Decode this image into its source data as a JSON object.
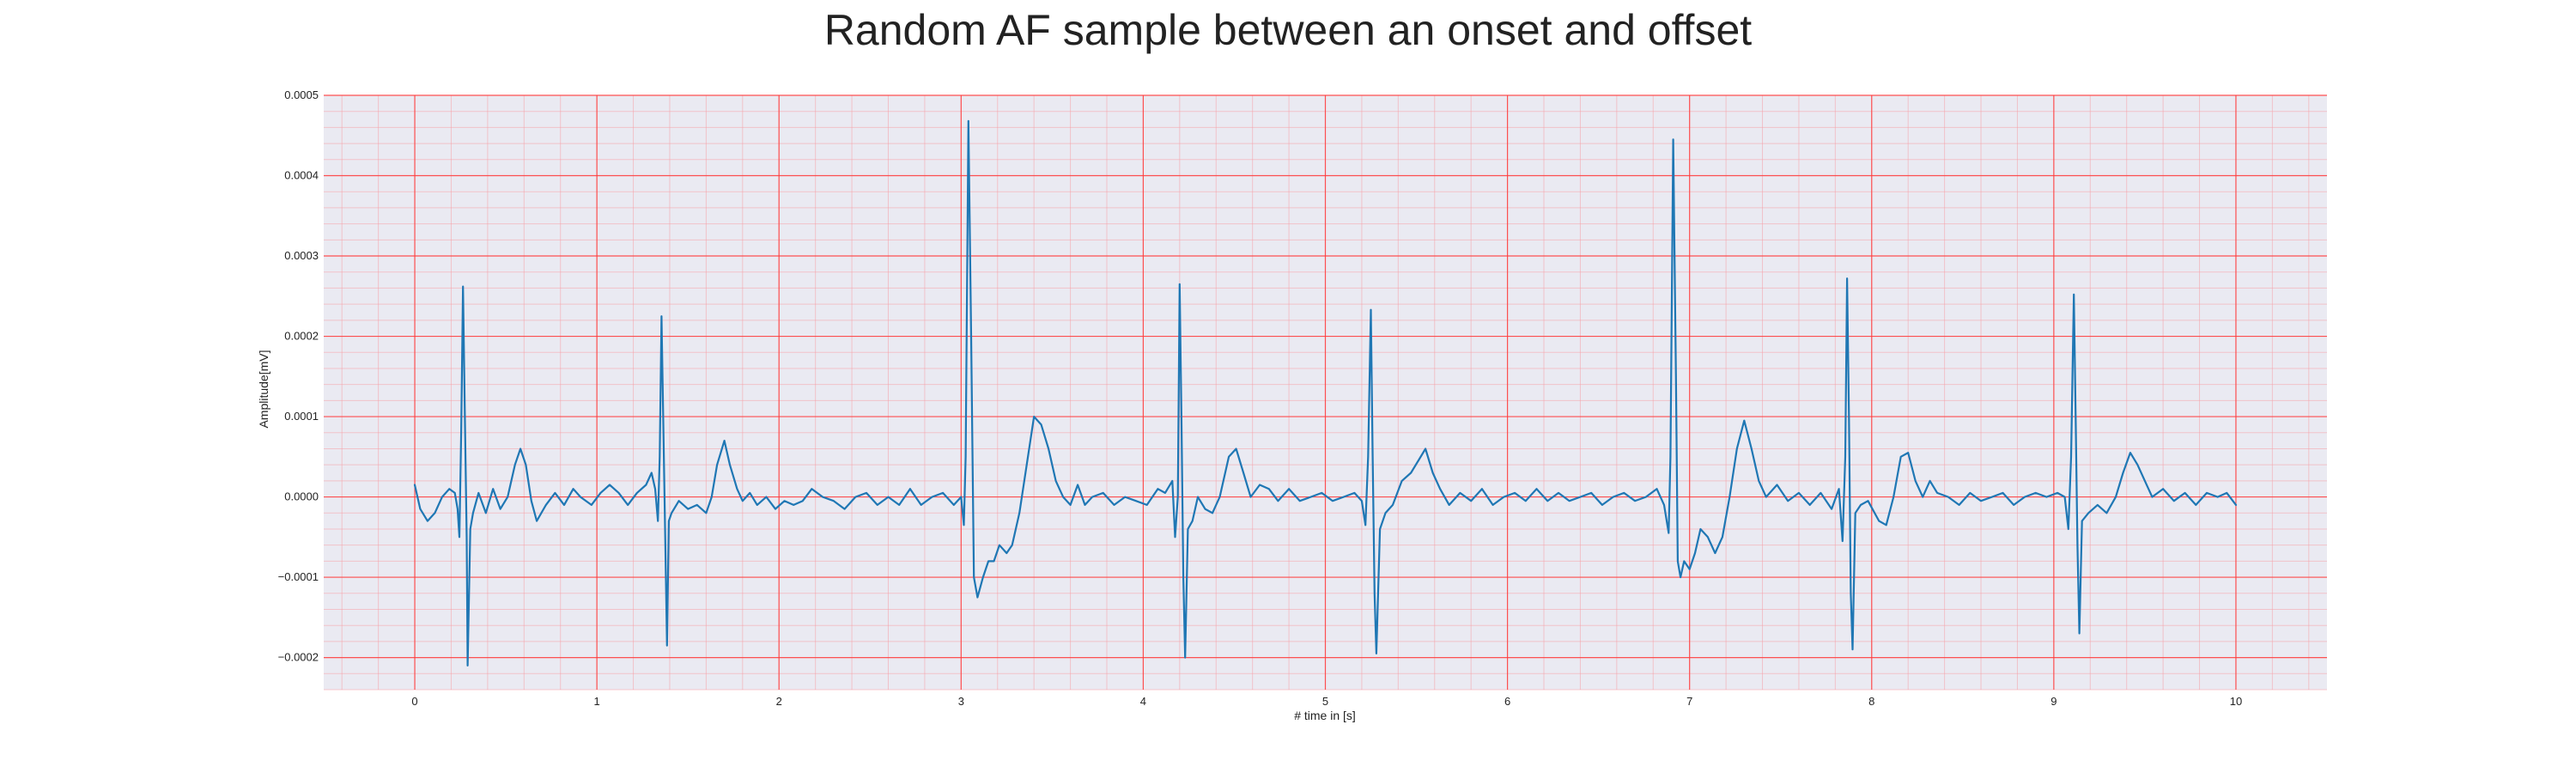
{
  "chart_data": {
    "type": "line",
    "title": "Random AF sample between an onset and offset",
    "xlabel": "# time in [s]",
    "ylabel": "Amplitude[mV]",
    "xlim": [
      -0.5,
      10.5
    ],
    "ylim": [
      -0.00024,
      0.0005
    ],
    "x_ticks": [
      0,
      1,
      2,
      3,
      4,
      5,
      6,
      7,
      8,
      9,
      10
    ],
    "y_ticks": [
      -0.0002,
      -0.0001,
      0.0,
      0.0001,
      0.0002,
      0.0003,
      0.0004,
      0.0005
    ],
    "x_tick_labels": [
      "0",
      "1",
      "2",
      "3",
      "4",
      "5",
      "6",
      "7",
      "8",
      "9",
      "10"
    ],
    "y_tick_labels": [
      "−0.0002",
      "−0.0001",
      "0.0000",
      "0.0001",
      "0.0002",
      "0.0003",
      "0.0004",
      "0.0005"
    ],
    "grid": true,
    "minor_grid": true,
    "colors": {
      "background": "#eaeaf2",
      "major_grid": "#ff3b3b",
      "minor_grid": "#f5a0a8",
      "line": "#1f77b4"
    },
    "series": [
      {
        "values": [
          [
            0.0,
            1.5e-05
          ],
          [
            0.03,
            -1.5e-05
          ],
          [
            0.07,
            -3e-05
          ],
          [
            0.11,
            -2e-05
          ],
          [
            0.15,
            0.0
          ],
          [
            0.19,
            1e-05
          ],
          [
            0.22,
            5e-06
          ],
          [
            0.235,
            -1.5e-05
          ],
          [
            0.245,
            -5e-05
          ],
          [
            0.255,
            8e-05
          ],
          [
            0.265,
            0.000262
          ],
          [
            0.275,
            0.0001
          ],
          [
            0.285,
            -5e-05
          ],
          [
            0.29,
            -0.00021
          ],
          [
            0.305,
            -4e-05
          ],
          [
            0.32,
            -2e-05
          ],
          [
            0.35,
            5e-06
          ],
          [
            0.39,
            -2e-05
          ],
          [
            0.43,
            1e-05
          ],
          [
            0.47,
            -1.5e-05
          ],
          [
            0.51,
            0.0
          ],
          [
            0.55,
            4e-05
          ],
          [
            0.58,
            6e-05
          ],
          [
            0.61,
            4e-05
          ],
          [
            0.64,
            -5e-06
          ],
          [
            0.67,
            -3e-05
          ],
          [
            0.72,
            -1e-05
          ],
          [
            0.77,
            5e-06
          ],
          [
            0.82,
            -1e-05
          ],
          [
            0.87,
            1e-05
          ],
          [
            0.91,
            0.0
          ],
          [
            0.97,
            -1e-05
          ],
          [
            1.02,
            5e-06
          ],
          [
            1.07,
            1.5e-05
          ],
          [
            1.12,
            5e-06
          ],
          [
            1.17,
            -1e-05
          ],
          [
            1.22,
            5e-06
          ],
          [
            1.27,
            1.5e-05
          ],
          [
            1.3,
            3e-05
          ],
          [
            1.32,
            1e-05
          ],
          [
            1.335,
            -3e-05
          ],
          [
            1.345,
            5e-05
          ],
          [
            1.355,
            0.000225
          ],
          [
            1.365,
            9e-05
          ],
          [
            1.375,
            -5e-05
          ],
          [
            1.385,
            -0.000185
          ],
          [
            1.395,
            -3e-05
          ],
          [
            1.41,
            -2e-05
          ],
          [
            1.45,
            -5e-06
          ],
          [
            1.5,
            -1.5e-05
          ],
          [
            1.55,
            -1e-05
          ],
          [
            1.6,
            -2e-05
          ],
          [
            1.63,
            0.0
          ],
          [
            1.66,
            4e-05
          ],
          [
            1.7,
            7e-05
          ],
          [
            1.73,
            4e-05
          ],
          [
            1.77,
            1e-05
          ],
          [
            1.8,
            -5e-06
          ],
          [
            1.84,
            5e-06
          ],
          [
            1.88,
            -1e-05
          ],
          [
            1.93,
            0.0
          ],
          [
            1.98,
            -1.5e-05
          ],
          [
            2.03,
            -5e-06
          ],
          [
            2.08,
            -1e-05
          ],
          [
            2.13,
            -5e-06
          ],
          [
            2.18,
            1e-05
          ],
          [
            2.24,
            0.0
          ],
          [
            2.3,
            -5e-06
          ],
          [
            2.36,
            -1.5e-05
          ],
          [
            2.42,
            0.0
          ],
          [
            2.48,
            5e-06
          ],
          [
            2.54,
            -1e-05
          ],
          [
            2.6,
            0.0
          ],
          [
            2.66,
            -1e-05
          ],
          [
            2.72,
            1e-05
          ],
          [
            2.78,
            -1e-05
          ],
          [
            2.84,
            0.0
          ],
          [
            2.9,
            5e-06
          ],
          [
            2.96,
            -1e-05
          ],
          [
            3.0,
            0.0
          ],
          [
            3.015,
            -3.5e-05
          ],
          [
            3.025,
            5e-05
          ],
          [
            3.04,
            0.000468
          ],
          [
            3.055,
            0.0002
          ],
          [
            3.07,
            -0.0001
          ],
          [
            3.09,
            -0.000125
          ],
          [
            3.12,
            -0.0001
          ],
          [
            3.15,
            -8e-05
          ],
          [
            3.18,
            -8e-05
          ],
          [
            3.21,
            -6e-05
          ],
          [
            3.25,
            -7e-05
          ],
          [
            3.28,
            -6e-05
          ],
          [
            3.32,
            -2e-05
          ],
          [
            3.36,
            4e-05
          ],
          [
            3.4,
            0.0001
          ],
          [
            3.44,
            9e-05
          ],
          [
            3.48,
            6e-05
          ],
          [
            3.52,
            2e-05
          ],
          [
            3.56,
            0.0
          ],
          [
            3.6,
            -1e-05
          ],
          [
            3.64,
            1.5e-05
          ],
          [
            3.68,
            -1e-05
          ],
          [
            3.72,
            0.0
          ],
          [
            3.78,
            5e-06
          ],
          [
            3.84,
            -1e-05
          ],
          [
            3.9,
            0.0
          ],
          [
            3.96,
            -5e-06
          ],
          [
            4.02,
            -1e-05
          ],
          [
            4.08,
            1e-05
          ],
          [
            4.12,
            5e-06
          ],
          [
            4.16,
            2e-05
          ],
          [
            4.175,
            -5e-05
          ],
          [
            4.19,
            0.0
          ],
          [
            4.2,
            0.000265
          ],
          [
            4.21,
            0.0001
          ],
          [
            4.22,
            -0.0001
          ],
          [
            4.23,
            -0.0002
          ],
          [
            4.245,
            -4e-05
          ],
          [
            4.27,
            -3e-05
          ],
          [
            4.3,
            0.0
          ],
          [
            4.34,
            -1.5e-05
          ],
          [
            4.38,
            -2e-05
          ],
          [
            4.42,
            0.0
          ],
          [
            4.47,
            5e-05
          ],
          [
            4.51,
            6e-05
          ],
          [
            4.55,
            3e-05
          ],
          [
            4.59,
            0.0
          ],
          [
            4.64,
            1.5e-05
          ],
          [
            4.69,
            1e-05
          ],
          [
            4.74,
            -5e-06
          ],
          [
            4.8,
            1e-05
          ],
          [
            4.86,
            -5e-06
          ],
          [
            4.92,
            0.0
          ],
          [
            4.98,
            5e-06
          ],
          [
            5.04,
            -5e-06
          ],
          [
            5.1,
            0.0
          ],
          [
            5.16,
            5e-06
          ],
          [
            5.2,
            -5e-06
          ],
          [
            5.22,
            -3.5e-05
          ],
          [
            5.235,
            5e-05
          ],
          [
            5.25,
            0.000233
          ],
          [
            5.26,
            5e-05
          ],
          [
            5.27,
            -0.00012
          ],
          [
            5.28,
            -0.000195
          ],
          [
            5.3,
            -4e-05
          ],
          [
            5.33,
            -2e-05
          ],
          [
            5.37,
            -1e-05
          ],
          [
            5.42,
            2e-05
          ],
          [
            5.47,
            3e-05
          ],
          [
            5.51,
            4.5e-05
          ],
          [
            5.55,
            6e-05
          ],
          [
            5.59,
            3e-05
          ],
          [
            5.63,
            1e-05
          ],
          [
            5.68,
            -1e-05
          ],
          [
            5.74,
            5e-06
          ],
          [
            5.8,
            -5e-06
          ],
          [
            5.86,
            1e-05
          ],
          [
            5.92,
            -1e-05
          ],
          [
            5.98,
            0.0
          ],
          [
            6.04,
            5e-06
          ],
          [
            6.1,
            -5e-06
          ],
          [
            6.16,
            1e-05
          ],
          [
            6.22,
            -5e-06
          ],
          [
            6.28,
            5e-06
          ],
          [
            6.34,
            -5e-06
          ],
          [
            6.4,
            0.0
          ],
          [
            6.46,
            5e-06
          ],
          [
            6.52,
            -1e-05
          ],
          [
            6.58,
            0.0
          ],
          [
            6.64,
            5e-06
          ],
          [
            6.7,
            -5e-06
          ],
          [
            6.76,
            0.0
          ],
          [
            6.82,
            1e-05
          ],
          [
            6.86,
            -1e-05
          ],
          [
            6.885,
            -4.5e-05
          ],
          [
            6.895,
            5e-05
          ],
          [
            6.91,
            0.000445
          ],
          [
            6.925,
            0.00015
          ],
          [
            6.935,
            -8e-05
          ],
          [
            6.95,
            -0.0001
          ],
          [
            6.97,
            -8e-05
          ],
          [
            7.0,
            -9e-05
          ],
          [
            7.03,
            -7e-05
          ],
          [
            7.06,
            -4e-05
          ],
          [
            7.1,
            -5e-05
          ],
          [
            7.14,
            -7e-05
          ],
          [
            7.18,
            -5e-05
          ],
          [
            7.22,
            0.0
          ],
          [
            7.26,
            6e-05
          ],
          [
            7.3,
            9.5e-05
          ],
          [
            7.34,
            6e-05
          ],
          [
            7.38,
            2e-05
          ],
          [
            7.42,
            0.0
          ],
          [
            7.48,
            1.5e-05
          ],
          [
            7.54,
            -5e-06
          ],
          [
            7.6,
            5e-06
          ],
          [
            7.66,
            -1e-05
          ],
          [
            7.72,
            5e-06
          ],
          [
            7.78,
            -1.5e-05
          ],
          [
            7.82,
            1e-05
          ],
          [
            7.84,
            -5.5e-05
          ],
          [
            7.855,
            5e-05
          ],
          [
            7.865,
            0.000272
          ],
          [
            7.875,
            0.0001
          ],
          [
            7.885,
            -0.00012
          ],
          [
            7.895,
            -0.00019
          ],
          [
            7.91,
            -2e-05
          ],
          [
            7.94,
            -1e-05
          ],
          [
            7.98,
            -5e-06
          ],
          [
            8.04,
            -3e-05
          ],
          [
            8.08,
            -3.5e-05
          ],
          [
            8.12,
            0.0
          ],
          [
            8.16,
            5e-05
          ],
          [
            8.2,
            5.5e-05
          ],
          [
            8.24,
            2e-05
          ],
          [
            8.28,
            0.0
          ],
          [
            8.32,
            2e-05
          ],
          [
            8.36,
            5e-06
          ],
          [
            8.42,
            0.0
          ],
          [
            8.48,
            -1e-05
          ],
          [
            8.54,
            5e-06
          ],
          [
            8.6,
            -5e-06
          ],
          [
            8.66,
            0.0
          ],
          [
            8.72,
            5e-06
          ],
          [
            8.78,
            -1e-05
          ],
          [
            8.84,
            0.0
          ],
          [
            8.9,
            5e-06
          ],
          [
            8.96,
            0.0
          ],
          [
            9.02,
            5e-06
          ],
          [
            9.06,
            0.0
          ],
          [
            9.08,
            -4e-05
          ],
          [
            9.095,
            5e-05
          ],
          [
            9.11,
            0.000252
          ],
          [
            9.12,
            0.0001
          ],
          [
            9.13,
            -6e-05
          ],
          [
            9.14,
            -0.00017
          ],
          [
            9.155,
            -3e-05
          ],
          [
            9.19,
            -2e-05
          ],
          [
            9.24,
            -1e-05
          ],
          [
            9.29,
            -2e-05
          ],
          [
            9.34,
            0.0
          ],
          [
            9.38,
            3e-05
          ],
          [
            9.42,
            5.5e-05
          ],
          [
            9.46,
            4e-05
          ],
          [
            9.5,
            2e-05
          ],
          [
            9.54,
            0.0
          ],
          [
            9.6,
            1e-05
          ],
          [
            9.66,
            -5e-06
          ],
          [
            9.72,
            5e-06
          ],
          [
            9.78,
            -1e-05
          ],
          [
            9.84,
            5e-06
          ],
          [
            9.9,
            0.0
          ],
          [
            9.95,
            5e-06
          ],
          [
            10.0,
            -1e-05
          ]
        ]
      }
    ]
  }
}
